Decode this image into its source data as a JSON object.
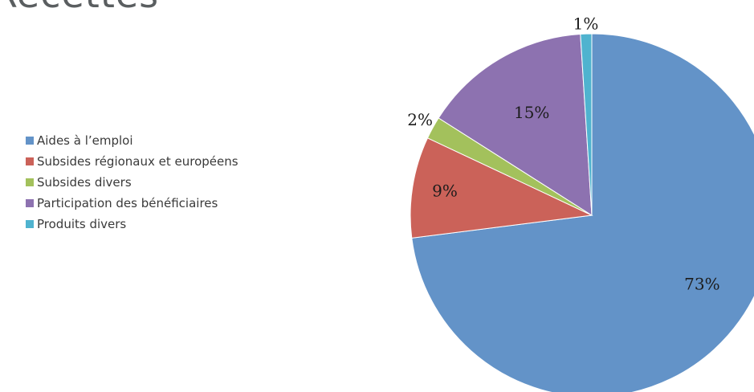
{
  "page": {
    "title": "Recettes"
  },
  "chart_data": {
    "type": "pie",
    "title": "",
    "legend_position": "left",
    "start": "top",
    "direction": "clockwise",
    "slices": [
      {
        "name": "Aides à l’emploi",
        "value": 73,
        "label": "73%",
        "color": "#6393c8"
      },
      {
        "name": "Subsides régionaux et européens",
        "value": 9,
        "label": "9%",
        "color": "#cb6259"
      },
      {
        "name": "Subsides divers",
        "value": 2,
        "label": "2%",
        "color": "#a3c15c"
      },
      {
        "name": "Participation des bénéficiaires",
        "value": 15,
        "label": "15%",
        "color": "#8d72b0"
      },
      {
        "name": "Produits divers",
        "value": 1,
        "label": "1%",
        "color": "#4fb3cf"
      }
    ]
  }
}
